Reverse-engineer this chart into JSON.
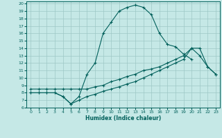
{
  "xlabel": "Humidex (Indice chaleur)",
  "xlim": [
    -0.5,
    23.5
  ],
  "ylim": [
    6,
    20.3
  ],
  "yticks": [
    6,
    7,
    8,
    9,
    10,
    11,
    12,
    13,
    14,
    15,
    16,
    17,
    18,
    19,
    20
  ],
  "xticks": [
    0,
    1,
    2,
    3,
    4,
    5,
    6,
    7,
    8,
    9,
    10,
    11,
    12,
    13,
    14,
    15,
    16,
    17,
    18,
    19,
    20,
    21,
    22,
    23
  ],
  "bg_color": "#c5e8e6",
  "grid_color": "#9dc8c5",
  "line_color": "#005f5a",
  "line1_x": [
    0,
    1,
    2,
    3,
    4,
    5,
    6,
    7,
    8,
    9,
    10,
    11,
    12,
    13,
    14,
    15,
    16,
    17,
    18,
    19,
    20
  ],
  "line1_y": [
    8.0,
    8.0,
    8.0,
    8.0,
    7.5,
    6.5,
    7.5,
    10.5,
    12.0,
    16.0,
    17.5,
    19.0,
    19.5,
    19.8,
    19.5,
    18.5,
    16.0,
    14.5,
    14.2,
    13.2,
    12.5
  ],
  "line2_x": [
    0,
    1,
    2,
    3,
    4,
    5,
    6,
    7,
    8,
    9,
    10,
    11,
    12,
    13,
    14,
    15,
    16,
    17,
    18,
    19,
    20,
    21,
    22,
    23
  ],
  "line2_y": [
    8.0,
    8.0,
    8.0,
    8.0,
    7.5,
    6.5,
    7.0,
    7.5,
    7.8,
    8.2,
    8.5,
    8.8,
    9.2,
    9.5,
    10.0,
    10.5,
    11.0,
    11.5,
    12.0,
    12.5,
    14.0,
    13.0,
    11.5,
    10.5
  ],
  "line3_x": [
    0,
    1,
    2,
    3,
    4,
    5,
    6,
    7,
    8,
    9,
    10,
    11,
    12,
    13,
    14,
    15,
    16,
    17,
    18,
    19,
    20,
    21,
    22,
    23
  ],
  "line3_y": [
    8.5,
    8.5,
    8.5,
    8.5,
    8.5,
    8.5,
    8.5,
    8.5,
    8.8,
    9.0,
    9.5,
    9.8,
    10.2,
    10.5,
    11.0,
    11.2,
    11.5,
    12.0,
    12.5,
    13.0,
    14.0,
    14.0,
    11.5,
    10.5
  ]
}
